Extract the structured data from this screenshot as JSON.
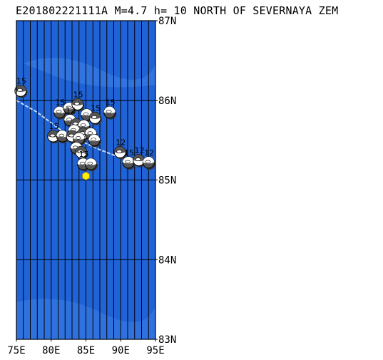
{
  "title": "E201802221111A M=4.7 h= 10 NORTH OF SEVERNAYA ZEM",
  "colors": {
    "ocean": "#1f63d6",
    "ocean_light": "#3f82e8",
    "grid": "#000000",
    "epicenter": "#ffee00",
    "track": "#d8e6ff",
    "beachball_dark": "#555555",
    "beachball_light": "#ffffff"
  },
  "map": {
    "lon_range": [
      75,
      95
    ],
    "lat_range": [
      83,
      87
    ],
    "lon_ticks": [
      "75E",
      "80E",
      "85E",
      "90E",
      "95E"
    ],
    "lat_ticks": [
      "87N",
      "86N",
      "85N",
      "84N",
      "83N"
    ],
    "meridian_step_deg": 1
  },
  "epicenter": {
    "lon": 85.0,
    "lat": 85.05,
    "icon": "yellow-hexagon"
  },
  "track_line": {
    "description_icon": "plate-boundary-line",
    "points": [
      [
        75.0,
        86.0
      ],
      [
        78.0,
        85.85
      ],
      [
        81.0,
        85.65
      ],
      [
        84.0,
        85.5
      ],
      [
        87.0,
        85.38
      ],
      [
        90.0,
        85.28
      ],
      [
        93.0,
        85.22
      ],
      [
        95.0,
        85.2
      ]
    ]
  },
  "mechanisms": [
    {
      "lon": 75.6,
      "lat": 86.12,
      "label": "15",
      "dark": false
    },
    {
      "lon": 81.2,
      "lat": 85.85,
      "label": "15",
      "dark": true
    },
    {
      "lon": 82.6,
      "lat": 85.9,
      "label": "",
      "dark": true
    },
    {
      "lon": 83.8,
      "lat": 85.95,
      "label": "15",
      "dark": false
    },
    {
      "lon": 85.1,
      "lat": 85.82,
      "label": "",
      "dark": true
    },
    {
      "lon": 86.3,
      "lat": 85.78,
      "label": "15",
      "dark": false
    },
    {
      "lon": 88.4,
      "lat": 85.85,
      "label": "15",
      "dark": true
    },
    {
      "lon": 82.7,
      "lat": 85.75,
      "label": "12",
      "dark": true
    },
    {
      "lon": 83.6,
      "lat": 85.7,
      "label": "",
      "dark": false
    },
    {
      "lon": 84.7,
      "lat": 85.68,
      "label": "",
      "dark": true
    },
    {
      "lon": 83.3,
      "lat": 85.62,
      "label": "",
      "dark": true
    },
    {
      "lon": 84.6,
      "lat": 85.58,
      "label": "",
      "dark": false
    },
    {
      "lon": 85.7,
      "lat": 85.58,
      "label": "",
      "dark": true
    },
    {
      "lon": 80.3,
      "lat": 85.55,
      "label": "15",
      "dark": false
    },
    {
      "lon": 81.6,
      "lat": 85.55,
      "label": "",
      "dark": true
    },
    {
      "lon": 83.0,
      "lat": 85.55,
      "label": "",
      "dark": false
    },
    {
      "lon": 84.0,
      "lat": 85.52,
      "label": "",
      "dark": true
    },
    {
      "lon": 86.2,
      "lat": 85.5,
      "label": "",
      "dark": true
    },
    {
      "lon": 83.6,
      "lat": 85.4,
      "label": "",
      "dark": true
    },
    {
      "lon": 84.3,
      "lat": 85.35,
      "label": "",
      "dark": false
    },
    {
      "lon": 84.6,
      "lat": 85.2,
      "label": "15",
      "dark": true
    },
    {
      "lon": 85.7,
      "lat": 85.2,
      "label": "",
      "dark": true
    },
    {
      "lon": 89.9,
      "lat": 85.35,
      "label": "12",
      "dark": false
    },
    {
      "lon": 91.1,
      "lat": 85.22,
      "label": "15",
      "dark": true
    },
    {
      "lon": 92.6,
      "lat": 85.25,
      "label": "12",
      "dark": false
    },
    {
      "lon": 94.0,
      "lat": 85.22,
      "label": "12",
      "dark": true
    }
  ]
}
